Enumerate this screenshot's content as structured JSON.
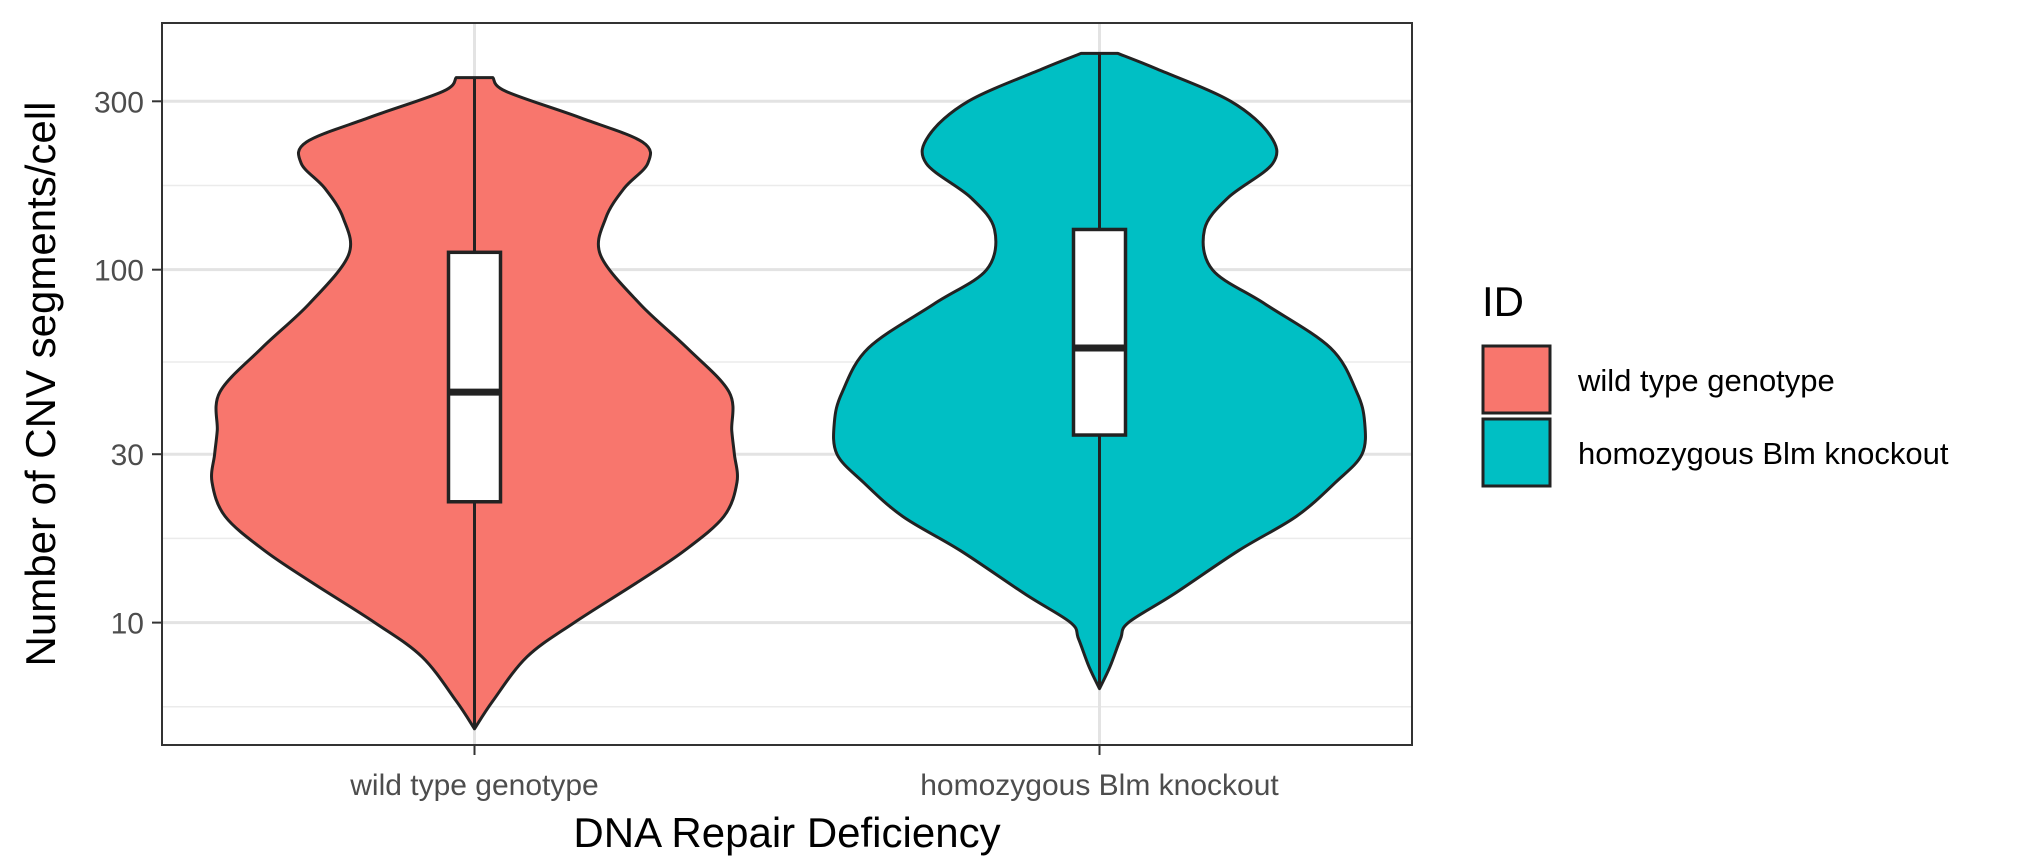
{
  "chart_data": {
    "type": "violin",
    "xlabel": "DNA Repair Deficiency",
    "ylabel": "Number of CNV segments/cell",
    "y_scale": "log10",
    "ylim": [
      4.5,
      500
    ],
    "y_ticks": [
      10,
      30,
      100,
      300
    ],
    "y_tick_labels": [
      "10",
      "30",
      "100",
      "300"
    ],
    "grid": true,
    "legend_title": "ID",
    "legend_position": "right",
    "categories": [
      "wild type genotype",
      "homozygous Blm knockout"
    ],
    "series": [
      {
        "name": "wild type genotype",
        "color": "#F8766D",
        "y_min": 5,
        "y_max": 350,
        "box": {
          "q1": 22,
          "median": 45,
          "q3": 112
        },
        "density_profile": [
          [
            5,
            0.0
          ],
          [
            6,
            0.07
          ],
          [
            8,
            0.2
          ],
          [
            10,
            0.38
          ],
          [
            13,
            0.62
          ],
          [
            16,
            0.8
          ],
          [
            20,
            0.95
          ],
          [
            25,
            1.0
          ],
          [
            30,
            0.99
          ],
          [
            35,
            0.98
          ],
          [
            45,
            0.97
          ],
          [
            60,
            0.81
          ],
          [
            80,
            0.63
          ],
          [
            110,
            0.48
          ],
          [
            140,
            0.5
          ],
          [
            170,
            0.57
          ],
          [
            200,
            0.66
          ],
          [
            230,
            0.64
          ],
          [
            270,
            0.4
          ],
          [
            320,
            0.12
          ],
          [
            350,
            0.07
          ]
        ]
      },
      {
        "name": "homozygous Blm knockout",
        "color": "#00BFC4",
        "y_min": 6.5,
        "y_max": 410,
        "box": {
          "q1": 34,
          "median": 60,
          "q3": 130
        },
        "density_profile": [
          [
            6.5,
            0.0
          ],
          [
            7.5,
            0.04
          ],
          [
            9,
            0.08
          ],
          [
            10,
            0.11
          ],
          [
            12,
            0.28
          ],
          [
            16,
            0.53
          ],
          [
            20,
            0.75
          ],
          [
            25,
            0.9
          ],
          [
            30,
            1.0
          ],
          [
            37,
            1.01
          ],
          [
            45,
            0.98
          ],
          [
            60,
            0.88
          ],
          [
            80,
            0.63
          ],
          [
            100,
            0.43
          ],
          [
            130,
            0.4
          ],
          [
            160,
            0.49
          ],
          [
            200,
            0.66
          ],
          [
            240,
            0.65
          ],
          [
            300,
            0.5
          ],
          [
            370,
            0.22
          ],
          [
            410,
            0.07
          ]
        ]
      }
    ]
  }
}
